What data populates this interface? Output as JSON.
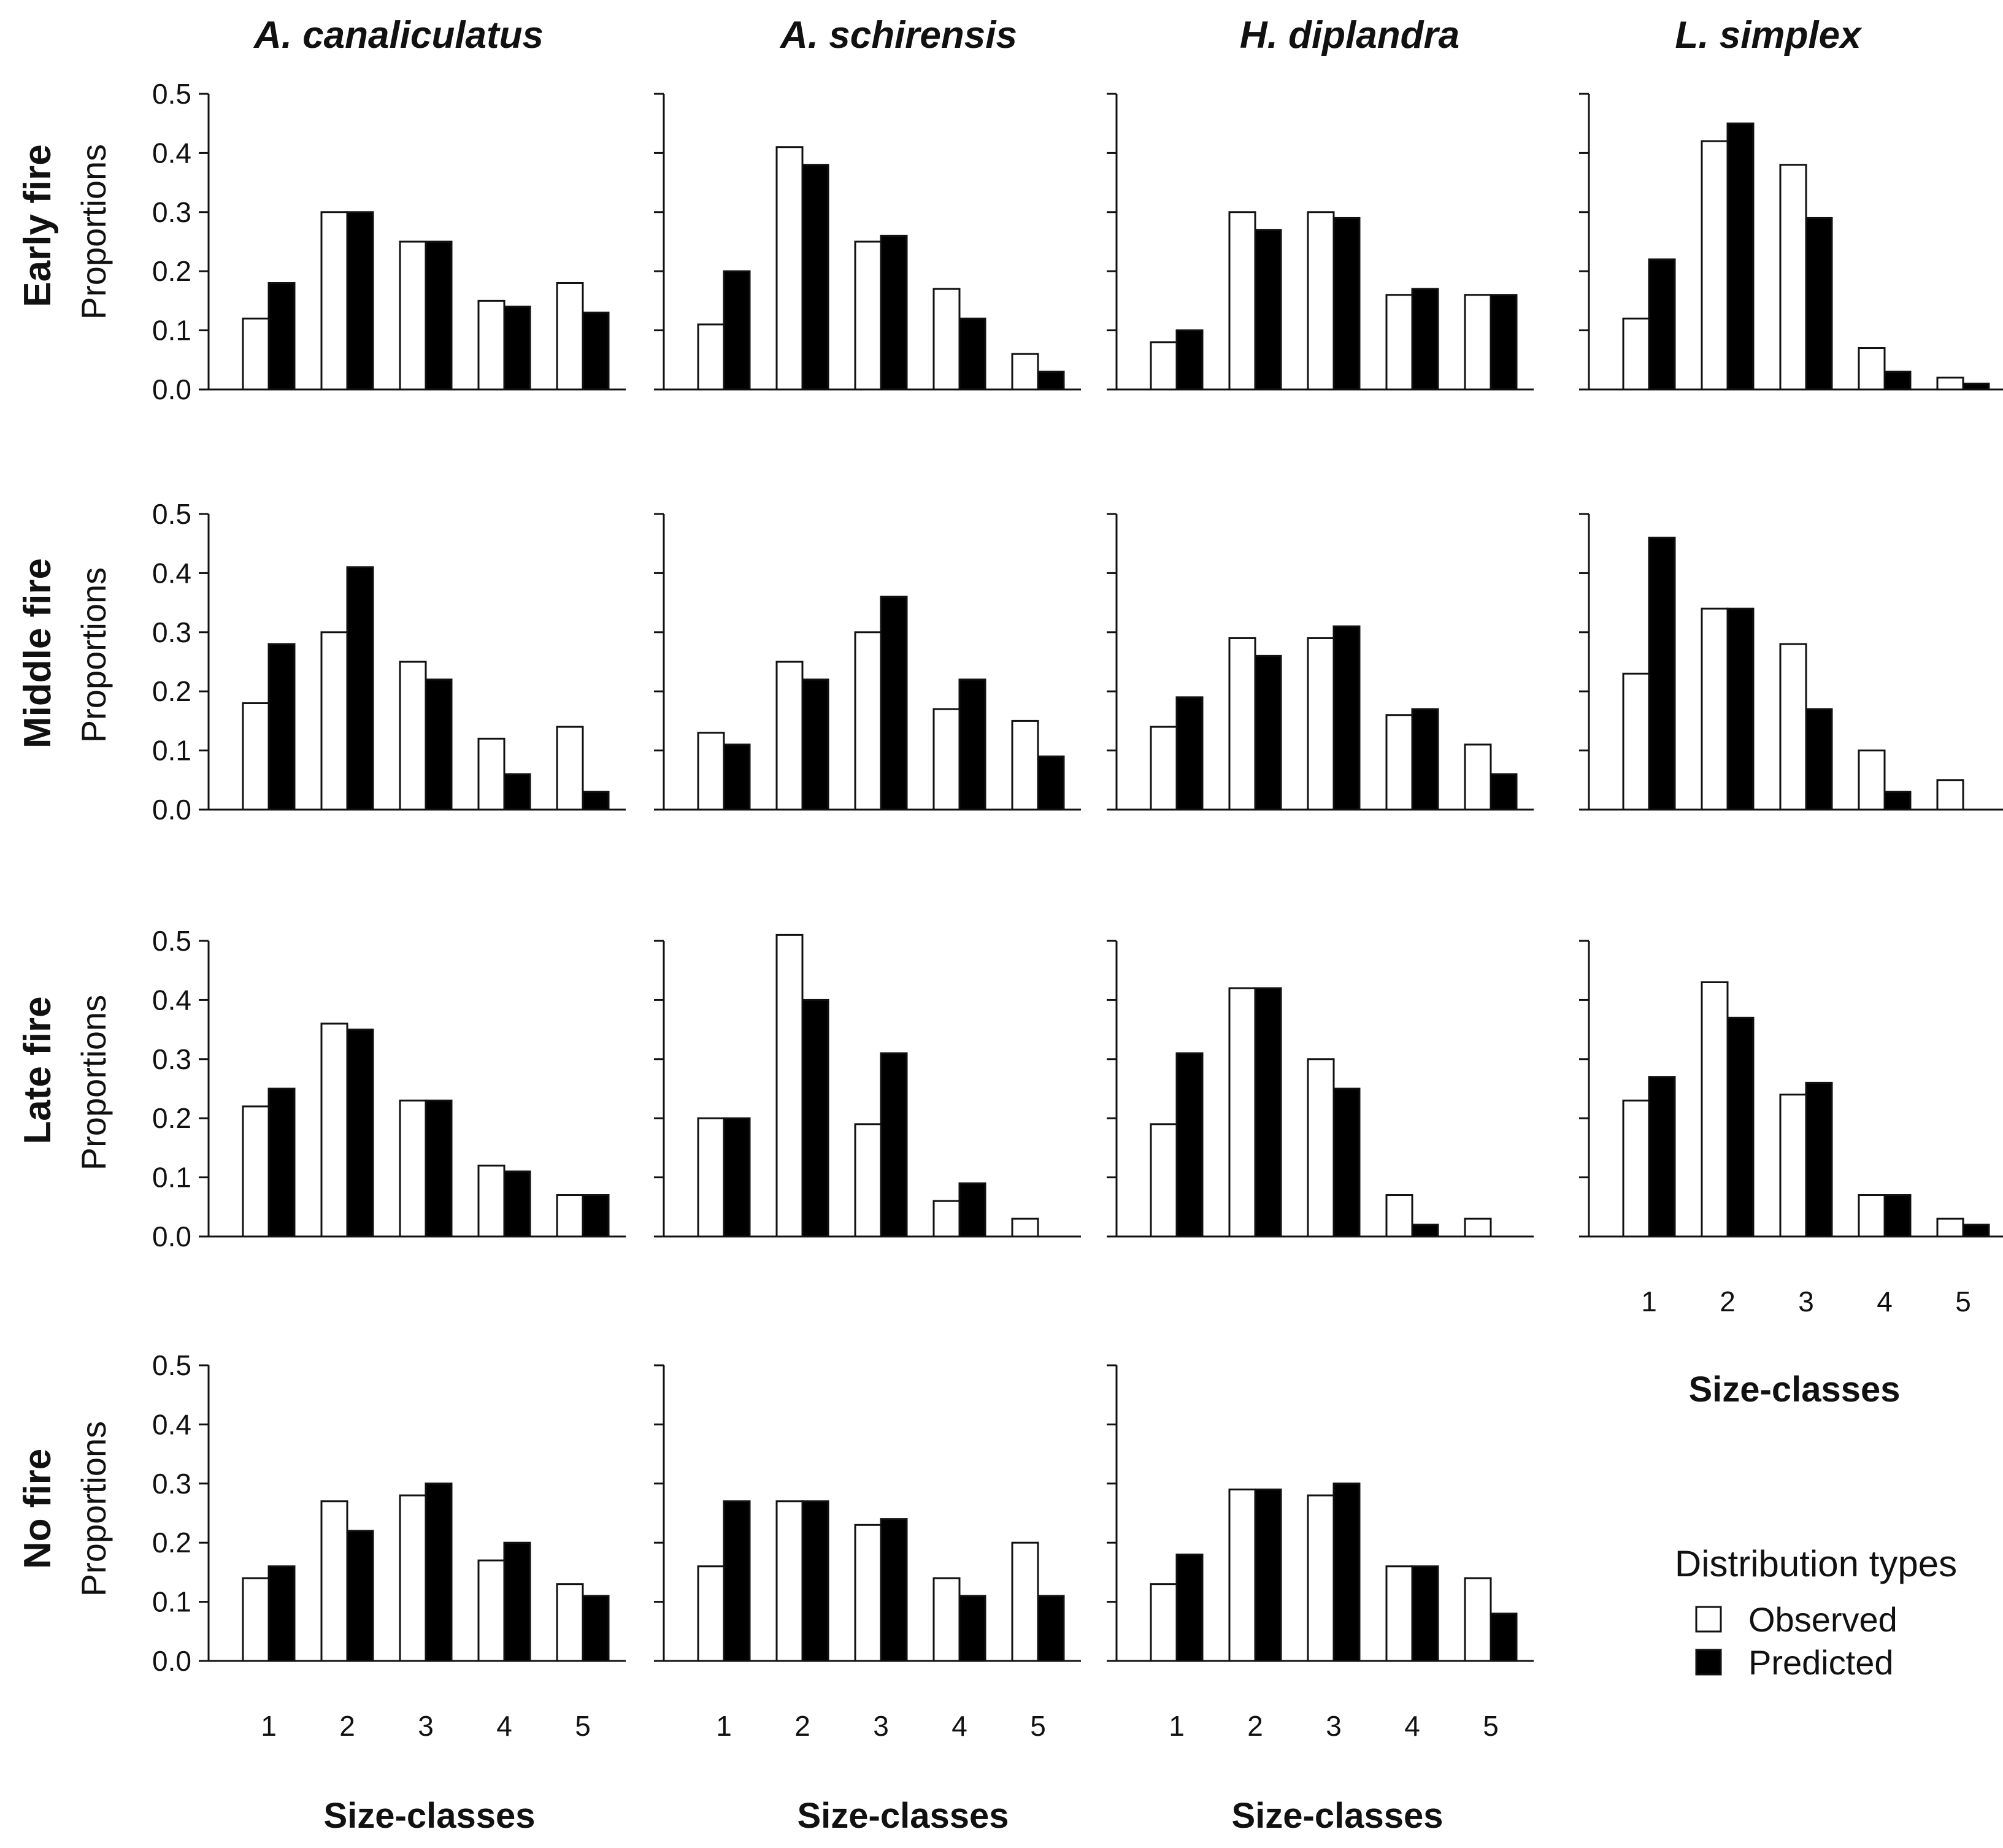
{
  "chart_data": {
    "type": "bar",
    "species": [
      "A. canaliculatus",
      "A. schirensis",
      "H. diplandra",
      "L. simplex"
    ],
    "treatments": [
      "Early fire",
      "Middle fire",
      "Late fire",
      "No fire"
    ],
    "categories": [
      "1",
      "2",
      "3",
      "4",
      "5"
    ],
    "ylabel": "Proportions",
    "xlabel": "Size-classes",
    "ylim": [
      0,
      0.5
    ],
    "yticks": [
      "0.0",
      "0.1",
      "0.2",
      "0.3",
      "0.4",
      "0.5"
    ],
    "legend": {
      "title": "Distribution types",
      "entries": [
        {
          "name": "Observed",
          "color": "#ffffff"
        },
        {
          "name": "Predicted",
          "color": "#000000"
        }
      ]
    },
    "panels": [
      {
        "row": 0,
        "col": 0,
        "species": "A. canaliculatus",
        "treatment": "Early fire",
        "series": [
          {
            "name": "Observed",
            "values": [
              0.12,
              0.3,
              0.25,
              0.15,
              0.18
            ]
          },
          {
            "name": "Predicted",
            "values": [
              0.18,
              0.3,
              0.25,
              0.14,
              0.13
            ]
          }
        ]
      },
      {
        "row": 0,
        "col": 1,
        "species": "A. schirensis",
        "treatment": "Early fire",
        "series": [
          {
            "name": "Observed",
            "values": [
              0.11,
              0.41,
              0.25,
              0.17,
              0.06
            ]
          },
          {
            "name": "Predicted",
            "values": [
              0.2,
              0.38,
              0.26,
              0.12,
              0.03
            ]
          }
        ]
      },
      {
        "row": 0,
        "col": 2,
        "species": "H. diplandra",
        "treatment": "Early fire",
        "series": [
          {
            "name": "Observed",
            "values": [
              0.08,
              0.3,
              0.3,
              0.16,
              0.16
            ]
          },
          {
            "name": "Predicted",
            "values": [
              0.1,
              0.27,
              0.29,
              0.17,
              0.16
            ]
          }
        ]
      },
      {
        "row": 0,
        "col": 3,
        "species": "L. simplex",
        "treatment": "Early fire",
        "series": [
          {
            "name": "Observed",
            "values": [
              0.12,
              0.42,
              0.38,
              0.07,
              0.02
            ]
          },
          {
            "name": "Predicted",
            "values": [
              0.22,
              0.45,
              0.29,
              0.03,
              0.01
            ]
          }
        ]
      },
      {
        "row": 1,
        "col": 0,
        "species": "A. canaliculatus",
        "treatment": "Middle fire",
        "series": [
          {
            "name": "Observed",
            "values": [
              0.18,
              0.3,
              0.25,
              0.12,
              0.14
            ]
          },
          {
            "name": "Predicted",
            "values": [
              0.28,
              0.41,
              0.22,
              0.06,
              0.03
            ]
          }
        ]
      },
      {
        "row": 1,
        "col": 1,
        "species": "A. schirensis",
        "treatment": "Middle fire",
        "series": [
          {
            "name": "Observed",
            "values": [
              0.13,
              0.25,
              0.3,
              0.17,
              0.15
            ]
          },
          {
            "name": "Predicted",
            "values": [
              0.11,
              0.22,
              0.36,
              0.22,
              0.09
            ]
          }
        ]
      },
      {
        "row": 1,
        "col": 2,
        "species": "H. diplandra",
        "treatment": "Middle fire",
        "series": [
          {
            "name": "Observed",
            "values": [
              0.14,
              0.29,
              0.29,
              0.16,
              0.11
            ]
          },
          {
            "name": "Predicted",
            "values": [
              0.19,
              0.26,
              0.31,
              0.17,
              0.06
            ]
          }
        ]
      },
      {
        "row": 1,
        "col": 3,
        "species": "L. simplex",
        "treatment": "Middle fire",
        "series": [
          {
            "name": "Observed",
            "values": [
              0.23,
              0.34,
              0.28,
              0.1,
              0.05
            ]
          },
          {
            "name": "Predicted",
            "values": [
              0.46,
              0.34,
              0.17,
              0.03,
              0.0
            ]
          }
        ]
      },
      {
        "row": 2,
        "col": 0,
        "species": "A. canaliculatus",
        "treatment": "Late fire",
        "series": [
          {
            "name": "Observed",
            "values": [
              0.22,
              0.36,
              0.23,
              0.12,
              0.07
            ]
          },
          {
            "name": "Predicted",
            "values": [
              0.25,
              0.35,
              0.23,
              0.11,
              0.07
            ]
          }
        ]
      },
      {
        "row": 2,
        "col": 1,
        "species": "A. schirensis",
        "treatment": "Late fire",
        "series": [
          {
            "name": "Observed",
            "values": [
              0.2,
              0.51,
              0.19,
              0.06,
              0.03
            ]
          },
          {
            "name": "Predicted",
            "values": [
              0.2,
              0.4,
              0.31,
              0.09,
              0.0
            ]
          }
        ]
      },
      {
        "row": 2,
        "col": 2,
        "species": "H. diplandra",
        "treatment": "Late fire",
        "series": [
          {
            "name": "Observed",
            "values": [
              0.19,
              0.42,
              0.3,
              0.07,
              0.03
            ]
          },
          {
            "name": "Predicted",
            "values": [
              0.31,
              0.42,
              0.25,
              0.02,
              0.0
            ]
          }
        ]
      },
      {
        "row": 2,
        "col": 3,
        "species": "L. simplex",
        "treatment": "Late fire",
        "series": [
          {
            "name": "Observed",
            "values": [
              0.23,
              0.43,
              0.24,
              0.07,
              0.03
            ]
          },
          {
            "name": "Predicted",
            "values": [
              0.27,
              0.37,
              0.26,
              0.07,
              0.02
            ]
          }
        ]
      },
      {
        "row": 3,
        "col": 0,
        "species": "A. canaliculatus",
        "treatment": "No fire",
        "series": [
          {
            "name": "Observed",
            "values": [
              0.14,
              0.27,
              0.28,
              0.17,
              0.13
            ]
          },
          {
            "name": "Predicted",
            "values": [
              0.16,
              0.22,
              0.3,
              0.2,
              0.11
            ]
          }
        ]
      },
      {
        "row": 3,
        "col": 1,
        "species": "A. schirensis",
        "treatment": "No fire",
        "series": [
          {
            "name": "Observed",
            "values": [
              0.16,
              0.27,
              0.23,
              0.14,
              0.2
            ]
          },
          {
            "name": "Predicted",
            "values": [
              0.27,
              0.27,
              0.24,
              0.11,
              0.11
            ]
          }
        ]
      },
      {
        "row": 3,
        "col": 2,
        "species": "H. diplandra",
        "treatment": "No fire",
        "series": [
          {
            "name": "Observed",
            "values": [
              0.13,
              0.29,
              0.28,
              0.16,
              0.14
            ]
          },
          {
            "name": "Predicted",
            "values": [
              0.18,
              0.29,
              0.3,
              0.16,
              0.08
            ]
          }
        ]
      }
    ]
  }
}
